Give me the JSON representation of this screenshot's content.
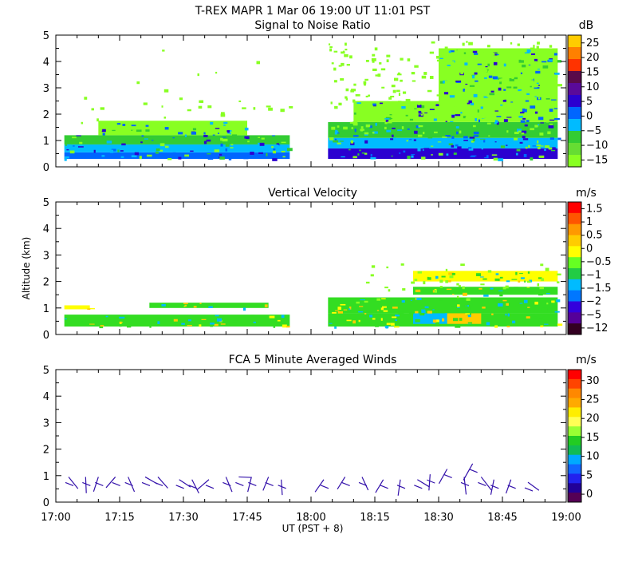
{
  "title": "T-REX   MAPR   1 Mar 06   19:00 UT   11:01   PST",
  "x_axis": {
    "label": "UT  (PST + 8)",
    "ticks": [
      "17:00",
      "17:15",
      "17:30",
      "17:45",
      "18:00",
      "18:15",
      "18:30",
      "18:45",
      "19:00"
    ],
    "range_minutes": [
      0,
      120
    ]
  },
  "y_axis": {
    "label": "Altitude (km)",
    "ticks": [
      "0",
      "1",
      "2",
      "3",
      "4",
      "5"
    ],
    "range_km": [
      0,
      5
    ]
  },
  "panels": [
    {
      "id": "snr",
      "title": "Signal to Noise Ratio",
      "unit": "dB",
      "colorbar_labels": [
        "25",
        "20",
        "15",
        "10",
        "5",
        "0",
        "−5",
        "−10",
        "−15"
      ],
      "colorbar_colors": [
        "#ffcc00",
        "#ff8000",
        "#ff3300",
        "#5a0a4a",
        "#5a0a9a",
        "#2b00d0",
        "#0066ff",
        "#00bbff",
        "#33cc33",
        "#66dd33",
        "#88ff22"
      ]
    },
    {
      "id": "vv",
      "title": "Vertical Velocity",
      "unit": "m/s",
      "colorbar_labels": [
        "1.5",
        "1",
        "0.5",
        "0",
        "−0.5",
        "−1",
        "−1.5",
        "−2",
        "−5",
        "−12"
      ],
      "colorbar_colors": [
        "#ff0000",
        "#ff5500",
        "#ff9900",
        "#ffcc00",
        "#ffff00",
        "#66ff22",
        "#22cc44",
        "#00bbff",
        "#0077ff",
        "#3300dd",
        "#550099",
        "#330022"
      ]
    },
    {
      "id": "winds",
      "title": "FCA 5 Minute Averaged Winds",
      "unit": "m/s",
      "colorbar_labels": [
        "30",
        "25",
        "20",
        "15",
        "10",
        "5",
        "0"
      ],
      "colorbar_colors": [
        "#ff0000",
        "#ff4400",
        "#ff8800",
        "#ffaa00",
        "#ffee00",
        "#ffff55",
        "#99ff33",
        "#22cc22",
        "#11bb55",
        "#00aaff",
        "#1166ff",
        "#2222ee",
        "#220099",
        "#550055"
      ]
    }
  ],
  "chart_data": [
    {
      "type": "heatmap",
      "title": "Signal to Noise Ratio",
      "xlabel": "UT  (PST + 8)",
      "ylabel": "Altitude (km)",
      "units": "dB",
      "xlim": [
        "17:00",
        "19:00"
      ],
      "ylim": [
        0,
        5
      ],
      "data_gap_ut": [
        "17:55",
        "18:04"
      ],
      "layers": [
        {
          "t0": 2,
          "t1": 55,
          "z0": 0.3,
          "z1": 0.55,
          "level": "0"
        },
        {
          "t0": 2,
          "t1": 55,
          "z0": 0.55,
          "z1": 0.85,
          "level": "-5"
        },
        {
          "t0": 2,
          "t1": 55,
          "z0": 0.85,
          "z1": 1.2,
          "level": "-10"
        },
        {
          "t0": 10,
          "t1": 45,
          "z0": 1.2,
          "z1": 1.75,
          "level": "-15"
        },
        {
          "t0": 64,
          "t1": 118,
          "z0": 0.3,
          "z1": 0.7,
          "level": "5"
        },
        {
          "t0": 64,
          "t1": 118,
          "z0": 0.7,
          "z1": 1.1,
          "level": "-5"
        },
        {
          "t0": 64,
          "t1": 118,
          "z0": 1.1,
          "z1": 1.7,
          "level": "-10"
        },
        {
          "t0": 70,
          "t1": 118,
          "z0": 1.7,
          "z1": 2.5,
          "level": "-15"
        },
        {
          "t0": 90,
          "t1": 118,
          "z0": 2.5,
          "z1": 4.5,
          "level": "-15"
        }
      ]
    },
    {
      "type": "heatmap",
      "title": "Vertical Velocity",
      "xlabel": "UT  (PST + 8)",
      "ylabel": "Altitude (km)",
      "units": "m/s",
      "xlim": [
        "17:00",
        "19:00"
      ],
      "ylim": [
        0,
        5
      ],
      "layers": [
        {
          "t0": 2,
          "t1": 55,
          "z0": 0.3,
          "z1": 0.75,
          "level": "-0.5"
        },
        {
          "t0": 2,
          "t1": 8,
          "z0": 0.95,
          "z1": 1.1,
          "level": "0"
        },
        {
          "t0": 22,
          "t1": 50,
          "z0": 1.0,
          "z1": 1.2,
          "level": "-0.5"
        },
        {
          "t0": 64,
          "t1": 118,
          "z0": 0.3,
          "z1": 0.8,
          "level": "-0.5"
        },
        {
          "t0": 84,
          "t1": 92,
          "z0": 0.4,
          "z1": 0.9,
          "level": "-1"
        },
        {
          "t0": 92,
          "t1": 100,
          "z0": 0.4,
          "z1": 0.9,
          "level": "0.5"
        },
        {
          "t0": 64,
          "t1": 118,
          "z0": 0.8,
          "z1": 1.4,
          "level": "-0.5"
        },
        {
          "t0": 84,
          "t1": 118,
          "z0": 1.5,
          "z1": 1.8,
          "level": "-0.5"
        },
        {
          "t0": 84,
          "t1": 118,
          "z0": 2.0,
          "z1": 2.4,
          "level": "0"
        }
      ]
    },
    {
      "type": "scatter",
      "title": "FCA 5 Minute Averaged Winds",
      "xlabel": "UT  (PST + 8)",
      "ylabel": "Altitude (km)",
      "units": "m/s",
      "xlim": [
        "17:00",
        "19:00"
      ],
      "ylim": [
        0,
        5
      ],
      "barbs_time_min": [
        3,
        7,
        10,
        14,
        17,
        21,
        24,
        29,
        32,
        36,
        40,
        43,
        46,
        50,
        53,
        63,
        68,
        72,
        77,
        81,
        85,
        88,
        92,
        96,
        98,
        100,
        103,
        107,
        111
      ],
      "barbs_altitude_km": [
        0.8,
        0.8,
        0.8,
        0.8,
        0.8,
        0.8,
        0.8,
        0.7,
        0.7,
        0.7,
        0.8,
        0.8,
        0.8,
        0.8,
        0.7,
        0.7,
        0.8,
        0.8,
        0.7,
        0.7,
        0.7,
        0.9,
        1.1,
        0.8,
        1.3,
        0.8,
        0.7,
        0.7,
        0.6
      ],
      "barbs_speed_ms": [
        6,
        7,
        6,
        5,
        7,
        6,
        6,
        5,
        6,
        7,
        7,
        6,
        6,
        5,
        6,
        6,
        5,
        5,
        6,
        7,
        6,
        7,
        8,
        9,
        11,
        8,
        6,
        5,
        5
      ]
    }
  ]
}
